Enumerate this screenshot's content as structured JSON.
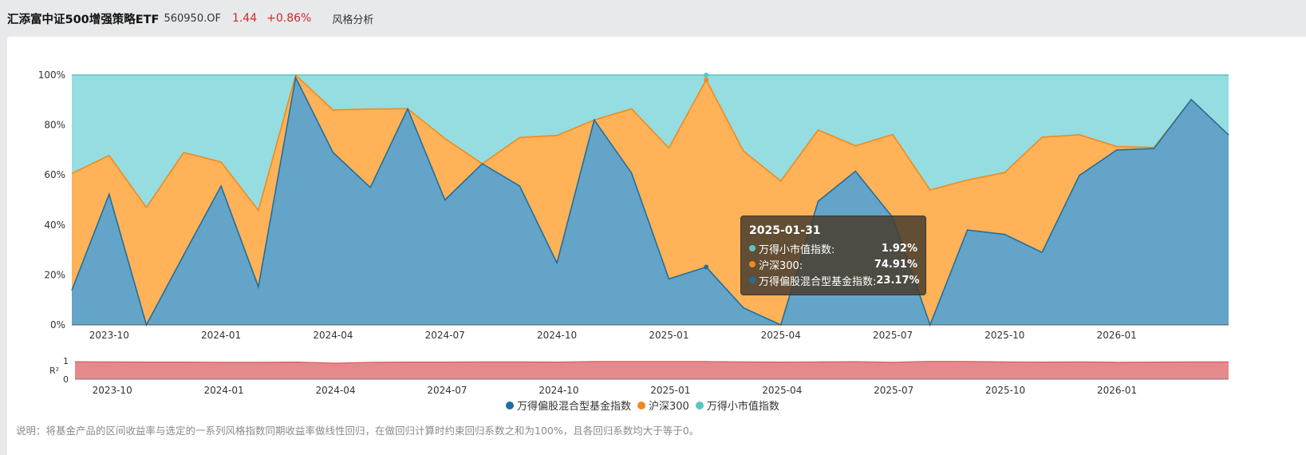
{
  "header": {
    "fund_name": "汇添富中证500增强策略ETF",
    "fund_code": "560950.OF",
    "price": "1.44",
    "change": "+0.86%",
    "tab": "风格分析"
  },
  "colors": {
    "blue": "#1f6fa0",
    "orange": "#f08a1e",
    "teal": "#5cc4c4",
    "blue_fill": "#64a4c8",
    "orange_fill": "#ffb257",
    "teal_fill": "#95dde0",
    "r2_fill": "#e58a8c",
    "r2_line": "#d95a5e"
  },
  "chart_data": [
    {
      "type": "area",
      "stacked": true,
      "title": "",
      "xlabel": "",
      "ylabel": "",
      "ylim": [
        0,
        100
      ],
      "y_unit": "%",
      "y_ticks": [
        "0%",
        "20%",
        "40%",
        "60%",
        "80%",
        "100%"
      ],
      "x_tick_labels": [
        "2023-10",
        "2024-01",
        "2024-04",
        "2024-07",
        "2024-10",
        "2025-01",
        "2025-04",
        "2025-07",
        "2025-10",
        "2026-01"
      ],
      "x": [
        "2023-09",
        "2023-10",
        "2023-11",
        "2023-12",
        "2024-01",
        "2024-02",
        "2024-03",
        "2024-04",
        "2024-05",
        "2024-06",
        "2024-07",
        "2024-08",
        "2024-09",
        "2024-10",
        "2024-11",
        "2024-12",
        "2025-01",
        "2025-02",
        "2025-03",
        "2025-04",
        "2025-05",
        "2025-06",
        "2025-07",
        "2025-08",
        "2025-09",
        "2025-10",
        "2025-11",
        "2025-12",
        "2026-01",
        "2026-02",
        "2026-03",
        "2026-04"
      ],
      "series": [
        {
          "name": "万得偏股混合型基金指数",
          "color": "blue",
          "values": [
            13.8,
            52.3,
            0,
            28,
            55.6,
            15.2,
            99,
            69,
            55,
            86.5,
            50,
            64.5,
            55.6,
            24.8,
            82,
            60.8,
            18.4,
            23.17,
            6.8,
            0,
            49.5,
            61.5,
            43,
            0,
            38,
            36.2,
            29,
            59.8,
            70,
            70.6,
            90.2,
            76
          ]
        },
        {
          "name": "沪深300",
          "color": "orange",
          "values": [
            46.8,
            15.5,
            47,
            41,
            9.6,
            30.6,
            1,
            17,
            31.4,
            0,
            24.6,
            0,
            19.4,
            51,
            0,
            25.7,
            52.4,
            74.91,
            62.8,
            57.6,
            28.5,
            10.2,
            33.2,
            54,
            20,
            24.8,
            46.1,
            16.3,
            1.4,
            0.4,
            0,
            0
          ]
        },
        {
          "name": "万得小市值指数",
          "color": "teal",
          "values": [
            39.4,
            32.2,
            53,
            31,
            34.8,
            54.2,
            0,
            14,
            13.6,
            13.5,
            25.4,
            35.5,
            25,
            24.2,
            18,
            13.5,
            29.2,
            1.92,
            30.4,
            42.4,
            22,
            28.3,
            23.8,
            46,
            42,
            39,
            24.9,
            23.9,
            28.6,
            29,
            9.8,
            24
          ]
        }
      ],
      "legend": "bottom-center",
      "grid": false,
      "tooltip": {
        "date": "2025-01-31",
        "rows": [
          {
            "name": "万得小市值指数:",
            "value": "1.92%",
            "color": "teal"
          },
          {
            "name": "沪深300:",
            "value": "74.91%",
            "color": "orange"
          },
          {
            "name": "万得偏股混合型基金指数:",
            "value": "23.17%",
            "color": "blue"
          }
        ]
      }
    },
    {
      "type": "area",
      "ylabel": "R²",
      "ylim": [
        0,
        1
      ],
      "y_ticks": [
        "0",
        "1"
      ],
      "x_tick_labels": [
        "2023-10",
        "2024-01",
        "2024-04",
        "2024-07",
        "2024-10",
        "2025-01",
        "2025-04",
        "2025-07",
        "2025-10",
        "2026-01"
      ],
      "values": [
        0.95,
        0.94,
        0.93,
        0.93,
        0.92,
        0.92,
        0.93,
        0.87,
        0.92,
        0.93,
        0.93,
        0.94,
        0.94,
        0.93,
        0.96,
        0.96,
        0.96,
        0.96,
        0.94,
        0.93,
        0.94,
        0.95,
        0.92,
        0.97,
        0.96,
        0.94,
        0.93,
        0.94,
        0.92,
        0.93,
        0.94,
        0.94
      ],
      "color": "r2"
    }
  ],
  "legend_items": [
    "万得偏股混合型基金指数",
    "沪深300",
    "万得小市值指数"
  ],
  "note": "说明：将基金产品的区间收益率与选定的一系列风格指数同期收益率做线性回归，在做回归计算时约束回归系数之和为100%，且各回归系数均大于等于0。"
}
